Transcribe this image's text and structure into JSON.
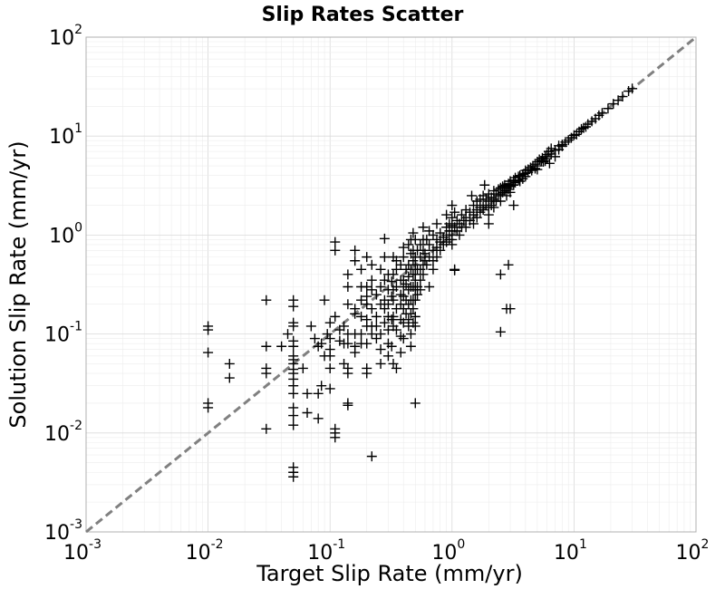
{
  "chart_data": {
    "type": "scatter",
    "title": "Slip Rates Scatter",
    "xlabel": "Target Slip Rate (mm/yr)",
    "ylabel": "Solution Slip Rate (mm/yr)",
    "xscale": "log",
    "yscale": "log",
    "xlim": [
      0.001,
      100
    ],
    "ylim": [
      0.001,
      100
    ],
    "grid": true,
    "marker": "+",
    "marker_color": "#000000",
    "reference_line": {
      "style": "dashed",
      "color": "#808080",
      "from": [
        0.001,
        0.001
      ],
      "to": [
        100,
        100
      ]
    },
    "x_ticks": [
      {
        "base": "10",
        "exp": "-3"
      },
      {
        "base": "10",
        "exp": "-2"
      },
      {
        "base": "10",
        "exp": "-1"
      },
      {
        "base": "10",
        "exp": "0"
      },
      {
        "base": "10",
        "exp": "1"
      },
      {
        "base": "10",
        "exp": "2"
      }
    ],
    "y_ticks": [
      {
        "base": "10",
        "exp": "-3"
      },
      {
        "base": "10",
        "exp": "-2"
      },
      {
        "base": "10",
        "exp": "-1"
      },
      {
        "base": "10",
        "exp": "0"
      },
      {
        "base": "10",
        "exp": "1"
      },
      {
        "base": "10",
        "exp": "2"
      }
    ],
    "points": [
      [
        0.01,
        0.12
      ],
      [
        0.01,
        0.11
      ],
      [
        0.01,
        0.065
      ],
      [
        0.01,
        0.02
      ],
      [
        0.01,
        0.018
      ],
      [
        0.015,
        0.05
      ],
      [
        0.015,
        0.036
      ],
      [
        0.03,
        0.22
      ],
      [
        0.03,
        0.075
      ],
      [
        0.03,
        0.045
      ],
      [
        0.03,
        0.04
      ],
      [
        0.03,
        0.011
      ],
      [
        0.05,
        0.22
      ],
      [
        0.05,
        0.19
      ],
      [
        0.05,
        0.13
      ],
      [
        0.05,
        0.12
      ],
      [
        0.05,
        0.085
      ],
      [
        0.05,
        0.075
      ],
      [
        0.05,
        0.06
      ],
      [
        0.05,
        0.055
      ],
      [
        0.05,
        0.05
      ],
      [
        0.05,
        0.044
      ],
      [
        0.05,
        0.04
      ],
      [
        0.05,
        0.035
      ],
      [
        0.05,
        0.03
      ],
      [
        0.05,
        0.025
      ],
      [
        0.05,
        0.018
      ],
      [
        0.05,
        0.015
      ],
      [
        0.05,
        0.012
      ],
      [
        0.05,
        0.0045
      ],
      [
        0.05,
        0.004
      ],
      [
        0.05,
        0.0036
      ],
      [
        0.04,
        0.075
      ],
      [
        0.045,
        0.1
      ],
      [
        0.06,
        0.045
      ],
      [
        0.065,
        0.025
      ],
      [
        0.065,
        0.016
      ],
      [
        0.07,
        0.12
      ],
      [
        0.075,
        0.09
      ],
      [
        0.08,
        0.075
      ],
      [
        0.085,
        0.08
      ],
      [
        0.09,
        0.22
      ],
      [
        0.095,
        0.1
      ],
      [
        0.1,
        0.13
      ],
      [
        0.1,
        0.09
      ],
      [
        0.1,
        0.07
      ],
      [
        0.1,
        0.06
      ],
      [
        0.1,
        0.045
      ],
      [
        0.1,
        0.028
      ],
      [
        0.09,
        0.06
      ],
      [
        0.085,
        0.03
      ],
      [
        0.08,
        0.025
      ],
      [
        0.08,
        0.014
      ],
      [
        0.11,
        0.85
      ],
      [
        0.11,
        0.7
      ],
      [
        0.11,
        0.15
      ],
      [
        0.11,
        0.011
      ],
      [
        0.11,
        0.01
      ],
      [
        0.11,
        0.009
      ],
      [
        0.12,
        0.11
      ],
      [
        0.12,
        0.085
      ],
      [
        0.13,
        0.12
      ],
      [
        0.13,
        0.08
      ],
      [
        0.13,
        0.05
      ],
      [
        0.14,
        0.4
      ],
      [
        0.14,
        0.3
      ],
      [
        0.14,
        0.2
      ],
      [
        0.14,
        0.1
      ],
      [
        0.14,
        0.08
      ],
      [
        0.14,
        0.045
      ],
      [
        0.14,
        0.04
      ],
      [
        0.14,
        0.02
      ],
      [
        0.14,
        0.019
      ],
      [
        0.16,
        0.7
      ],
      [
        0.16,
        0.55
      ],
      [
        0.16,
        0.18
      ],
      [
        0.16,
        0.16
      ],
      [
        0.16,
        0.1
      ],
      [
        0.16,
        0.075
      ],
      [
        0.16,
        0.065
      ],
      [
        0.18,
        0.45
      ],
      [
        0.18,
        0.3
      ],
      [
        0.18,
        0.22
      ],
      [
        0.18,
        0.15
      ],
      [
        0.18,
        0.1
      ],
      [
        0.18,
        0.08
      ],
      [
        0.2,
        0.6
      ],
      [
        0.2,
        0.3
      ],
      [
        0.2,
        0.24
      ],
      [
        0.2,
        0.2
      ],
      [
        0.2,
        0.14
      ],
      [
        0.2,
        0.12
      ],
      [
        0.2,
        0.08
      ],
      [
        0.2,
        0.045
      ],
      [
        0.2,
        0.04
      ],
      [
        0.22,
        0.5
      ],
      [
        0.22,
        0.35
      ],
      [
        0.22,
        0.28
      ],
      [
        0.22,
        0.18
      ],
      [
        0.22,
        0.12
      ],
      [
        0.22,
        0.1
      ],
      [
        0.22,
        0.0058
      ],
      [
        0.24,
        0.25
      ],
      [
        0.24,
        0.15
      ],
      [
        0.24,
        0.12
      ],
      [
        0.24,
        0.09
      ],
      [
        0.26,
        0.45
      ],
      [
        0.26,
        0.3
      ],
      [
        0.26,
        0.2
      ],
      [
        0.26,
        0.1
      ],
      [
        0.26,
        0.07
      ],
      [
        0.26,
        0.05
      ],
      [
        0.28,
        0.92
      ],
      [
        0.28,
        0.6
      ],
      [
        0.28,
        0.35
      ],
      [
        0.28,
        0.22
      ],
      [
        0.28,
        0.18
      ],
      [
        0.28,
        0.13
      ],
      [
        0.3,
        0.4
      ],
      [
        0.3,
        0.28
      ],
      [
        0.3,
        0.2
      ],
      [
        0.3,
        0.15
      ],
      [
        0.3,
        0.11
      ],
      [
        0.3,
        0.08
      ],
      [
        0.3,
        0.06
      ],
      [
        0.32,
        0.34
      ],
      [
        0.32,
        0.24
      ],
      [
        0.32,
        0.14
      ],
      [
        0.32,
        0.075
      ],
      [
        0.33,
        0.6
      ],
      [
        0.33,
        0.4
      ],
      [
        0.33,
        0.28
      ],
      [
        0.33,
        0.22
      ],
      [
        0.33,
        0.15
      ],
      [
        0.33,
        0.12
      ],
      [
        0.33,
        0.05
      ],
      [
        0.35,
        0.55
      ],
      [
        0.35,
        0.45
      ],
      [
        0.35,
        0.3
      ],
      [
        0.35,
        0.18
      ],
      [
        0.35,
        0.11
      ],
      [
        0.35,
        0.045
      ],
      [
        0.38,
        0.5
      ],
      [
        0.38,
        0.35
      ],
      [
        0.38,
        0.25
      ],
      [
        0.38,
        0.2
      ],
      [
        0.38,
        0.14
      ],
      [
        0.38,
        0.095
      ],
      [
        0.38,
        0.065
      ],
      [
        0.4,
        0.75
      ],
      [
        0.4,
        0.6
      ],
      [
        0.4,
        0.35
      ],
      [
        0.4,
        0.3
      ],
      [
        0.4,
        0.24
      ],
      [
        0.4,
        0.18
      ],
      [
        0.4,
        0.13
      ],
      [
        0.4,
        0.09
      ],
      [
        0.42,
        0.45
      ],
      [
        0.42,
        0.32
      ],
      [
        0.42,
        0.22
      ],
      [
        0.42,
        0.16
      ],
      [
        0.44,
        0.8
      ],
      [
        0.44,
        0.5
      ],
      [
        0.44,
        0.38
      ],
      [
        0.44,
        0.28
      ],
      [
        0.44,
        0.2
      ],
      [
        0.44,
        0.14
      ],
      [
        0.44,
        0.12
      ],
      [
        0.46,
        0.9
      ],
      [
        0.46,
        0.65
      ],
      [
        0.46,
        0.45
      ],
      [
        0.46,
        0.3
      ],
      [
        0.46,
        0.22
      ],
      [
        0.46,
        0.16
      ],
      [
        0.46,
        0.1
      ],
      [
        0.46,
        0.075
      ],
      [
        0.48,
        1.05
      ],
      [
        0.48,
        0.7
      ],
      [
        0.48,
        0.55
      ],
      [
        0.48,
        0.4
      ],
      [
        0.48,
        0.3
      ],
      [
        0.48,
        0.22
      ],
      [
        0.48,
        0.18
      ],
      [
        0.48,
        0.13
      ],
      [
        0.5,
        0.9
      ],
      [
        0.5,
        0.6
      ],
      [
        0.5,
        0.5
      ],
      [
        0.5,
        0.4
      ],
      [
        0.5,
        0.35
      ],
      [
        0.5,
        0.28
      ],
      [
        0.5,
        0.22
      ],
      [
        0.5,
        0.15
      ],
      [
        0.5,
        0.12
      ],
      [
        0.5,
        0.02
      ],
      [
        0.52,
        0.7
      ],
      [
        0.52,
        0.45
      ],
      [
        0.52,
        0.3
      ],
      [
        0.52,
        0.25
      ],
      [
        0.55,
        0.8
      ],
      [
        0.55,
        0.6
      ],
      [
        0.55,
        0.45
      ],
      [
        0.55,
        0.35
      ],
      [
        0.55,
        0.28
      ],
      [
        0.58,
        1.2
      ],
      [
        0.58,
        0.9
      ],
      [
        0.58,
        0.7
      ],
      [
        0.58,
        0.5
      ],
      [
        0.58,
        0.4
      ],
      [
        0.6,
        0.55
      ],
      [
        0.6,
        0.65
      ],
      [
        0.62,
        0.5
      ],
      [
        0.62,
        0.9
      ],
      [
        0.65,
        1.1
      ],
      [
        0.65,
        0.8
      ],
      [
        0.65,
        0.6
      ],
      [
        0.65,
        0.3
      ],
      [
        0.7,
        1.0
      ],
      [
        0.7,
        0.7
      ],
      [
        0.7,
        0.55
      ],
      [
        0.7,
        0.45
      ],
      [
        0.75,
        1.3
      ],
      [
        0.75,
        0.9
      ],
      [
        0.75,
        0.75
      ],
      [
        0.75,
        0.6
      ],
      [
        0.8,
        1.05
      ],
      [
        0.8,
        0.85
      ],
      [
        0.8,
        0.7
      ],
      [
        0.85,
        0.95
      ],
      [
        0.85,
        0.8
      ],
      [
        0.9,
        1.6
      ],
      [
        0.9,
        1.2
      ],
      [
        0.9,
        1.0
      ],
      [
        0.9,
        0.85
      ],
      [
        0.95,
        1.3
      ],
      [
        0.95,
        1.1
      ],
      [
        0.95,
        0.9
      ],
      [
        1.0,
        2.0
      ],
      [
        1.0,
        1.5
      ],
      [
        1.0,
        1.25
      ],
      [
        1.0,
        1.1
      ],
      [
        1.0,
        1.0
      ],
      [
        1.0,
        0.9
      ],
      [
        1.0,
        0.8
      ],
      [
        1.05,
        1.7
      ],
      [
        1.05,
        1.2
      ],
      [
        1.05,
        0.45
      ],
      [
        1.05,
        0.44
      ],
      [
        1.1,
        1.4
      ],
      [
        1.1,
        1.1
      ],
      [
        1.15,
        1.3
      ],
      [
        1.15,
        1.0
      ],
      [
        1.2,
        1.6
      ],
      [
        1.2,
        1.2
      ],
      [
        1.25,
        1.4
      ],
      [
        1.3,
        1.8
      ],
      [
        1.3,
        1.5
      ],
      [
        1.3,
        1.2
      ],
      [
        1.4,
        1.7
      ],
      [
        1.4,
        1.4
      ],
      [
        1.45,
        2.5
      ],
      [
        1.5,
        2.0
      ],
      [
        1.5,
        1.6
      ],
      [
        1.5,
        1.3
      ],
      [
        1.6,
        2.2
      ],
      [
        1.6,
        1.8
      ],
      [
        1.6,
        1.5
      ],
      [
        1.7,
        2.3
      ],
      [
        1.7,
        1.9
      ],
      [
        1.7,
        1.7
      ],
      [
        1.8,
        2.5
      ],
      [
        1.8,
        2.0
      ],
      [
        1.8,
        1.8
      ],
      [
        1.85,
        3.2
      ],
      [
        1.9,
        2.3
      ],
      [
        1.9,
        2.0
      ],
      [
        2.0,
        2.6
      ],
      [
        2.0,
        2.2
      ],
      [
        2.0,
        1.9
      ],
      [
        2.0,
        1.6
      ],
      [
        2.0,
        1.3
      ],
      [
        2.1,
        2.4
      ],
      [
        2.1,
        2.0
      ],
      [
        2.2,
        2.8
      ],
      [
        2.2,
        2.3
      ],
      [
        2.2,
        1.9
      ],
      [
        2.3,
        2.6
      ],
      [
        2.3,
        2.2
      ],
      [
        2.4,
        2.9
      ],
      [
        2.4,
        2.5
      ],
      [
        2.5,
        3.0
      ],
      [
        2.5,
        2.6
      ],
      [
        2.5,
        2.2
      ],
      [
        2.5,
        0.4
      ],
      [
        2.5,
        0.105
      ],
      [
        2.6,
        3.1
      ],
      [
        2.6,
        2.7
      ],
      [
        2.7,
        3.2
      ],
      [
        2.7,
        2.8
      ],
      [
        2.8,
        3.0
      ],
      [
        2.8,
        2.5
      ],
      [
        2.8,
        0.18
      ],
      [
        2.9,
        3.3
      ],
      [
        2.9,
        2.9
      ],
      [
        2.9,
        0.5
      ],
      [
        3.0,
        3.5
      ],
      [
        3.0,
        3.1
      ],
      [
        3.0,
        2.7
      ],
      [
        3.0,
        0.18
      ],
      [
        3.2,
        3.6
      ],
      [
        3.2,
        3.2
      ],
      [
        3.2,
        2.0
      ],
      [
        3.3,
        3.8
      ],
      [
        3.3,
        3.4
      ],
      [
        3.5,
        3.9
      ],
      [
        3.5,
        3.6
      ],
      [
        3.6,
        4.0
      ],
      [
        3.6,
        3.5
      ],
      [
        3.8,
        4.1
      ],
      [
        3.8,
        3.7
      ],
      [
        4.0,
        4.2
      ],
      [
        4.0,
        3.9
      ],
      [
        4.0,
        4.5
      ],
      [
        4.2,
        4.6
      ],
      [
        4.2,
        4.3
      ],
      [
        4.4,
        4.8
      ],
      [
        4.5,
        4.5
      ],
      [
        4.6,
        5.0
      ],
      [
        4.8,
        5.2
      ],
      [
        4.8,
        4.7
      ],
      [
        5.0,
        5.5
      ],
      [
        5.0,
        5.0
      ],
      [
        5.0,
        4.6
      ],
      [
        5.2,
        5.8
      ],
      [
        5.4,
        5.6
      ],
      [
        5.5,
        6.0
      ],
      [
        5.6,
        5.5
      ],
      [
        5.8,
        6.2
      ],
      [
        5.8,
        5.6
      ],
      [
        6.0,
        6.5
      ],
      [
        6.0,
        5.9
      ],
      [
        6.2,
        7.0
      ],
      [
        6.3,
        5.3
      ],
      [
        6.5,
        7.5
      ],
      [
        6.5,
        6.6
      ],
      [
        7.0,
        7.2
      ],
      [
        7.0,
        6.2
      ],
      [
        7.5,
        8.0
      ],
      [
        7.5,
        7.3
      ],
      [
        8.0,
        8.2
      ],
      [
        8.0,
        7.9
      ],
      [
        8.5,
        8.7
      ],
      [
        9.0,
        9.1
      ],
      [
        9.5,
        9.6
      ],
      [
        10.0,
        10.2
      ],
      [
        10.5,
        10.4
      ],
      [
        11.0,
        11.1
      ],
      [
        11.5,
        11.8
      ],
      [
        12.0,
        12.1
      ],
      [
        12.5,
        12.4
      ],
      [
        13.0,
        13.2
      ],
      [
        14.0,
        14.1
      ],
      [
        15.0,
        15.0
      ],
      [
        16.0,
        16.2
      ],
      [
        17.0,
        17.1
      ],
      [
        19.0,
        19.0
      ],
      [
        21.0,
        21.2
      ],
      [
        23.0,
        23.0
      ],
      [
        25.0,
        25.1
      ],
      [
        28.0,
        28.5
      ],
      [
        30.0,
        30.2
      ]
    ]
  }
}
